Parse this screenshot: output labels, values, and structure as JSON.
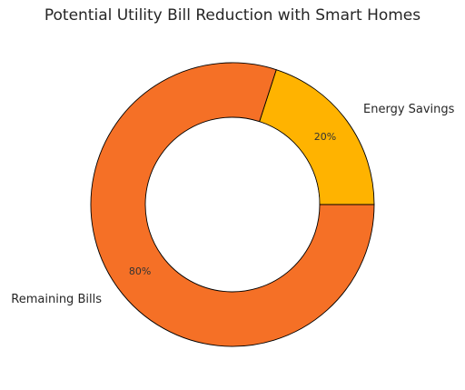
{
  "chart_data": {
    "type": "pie",
    "variant": "donut",
    "title": "Potential Utility Bill Reduction with Smart Homes",
    "slices": [
      {
        "label": "Energy Savings",
        "value": 20,
        "pct_label": "20%",
        "color": "#ffb300"
      },
      {
        "label": "Remaining Bills",
        "value": 80,
        "pct_label": "80%",
        "color": "#f57026"
      }
    ],
    "start_angle_deg": 0,
    "direction": "counterclockwise",
    "edge_color": "#000000",
    "hole_color": "#ffffff",
    "legend": "none"
  }
}
